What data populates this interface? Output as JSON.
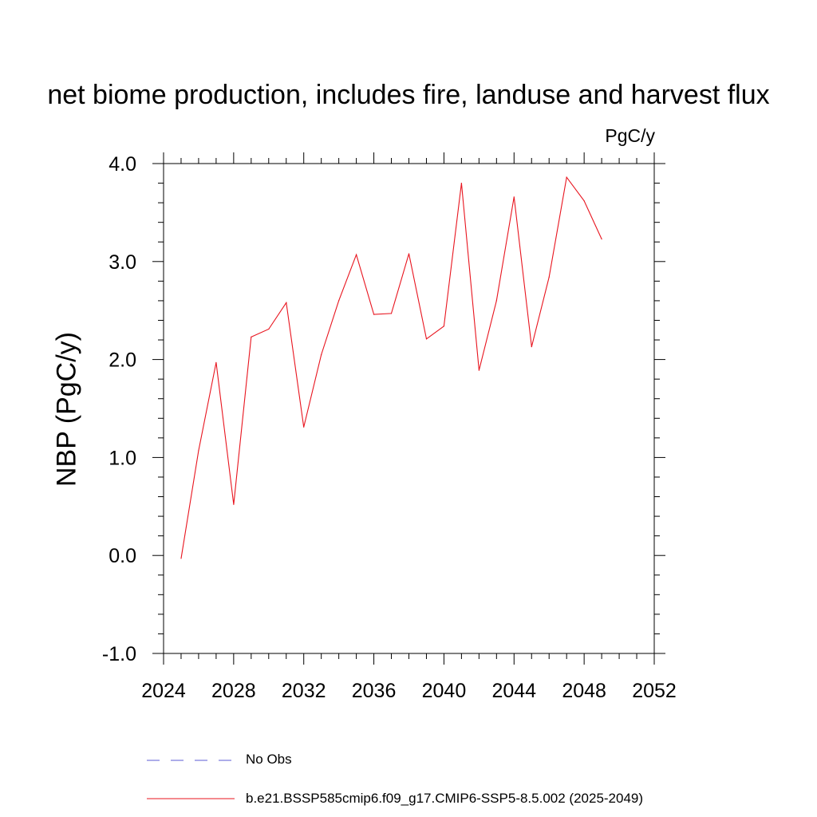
{
  "chart_data": {
    "type": "line",
    "title": "net biome production, includes fire, landuse and harvest flux",
    "units_label": "PgC/y",
    "xlabel": "",
    "ylabel": "NBP  (PgC/y)",
    "xlim": [
      2024,
      2052
    ],
    "ylim": [
      -1.0,
      4.0
    ],
    "x_ticks": [
      2024,
      2028,
      2032,
      2036,
      2040,
      2044,
      2048,
      2052
    ],
    "x_tick_labels": [
      "2024",
      "2028",
      "2032",
      "2036",
      "2040",
      "2044",
      "2048",
      "2052"
    ],
    "y_ticks": [
      -1.0,
      0.0,
      1.0,
      2.0,
      3.0,
      4.0
    ],
    "y_tick_labels": [
      "-1.0",
      "0.0",
      "1.0",
      "2.0",
      "3.0",
      "4.0"
    ],
    "grid": false,
    "legend_position": "bottom",
    "series": [
      {
        "name": "No Obs",
        "color": "#5b5bd6",
        "style": "dashed",
        "x": [],
        "values": []
      },
      {
        "name": "b.e21.BSSP585cmip6.f09_g17.CMIP6-SSP5-8.5.002 (2025-2049)",
        "color": "#e8141e",
        "style": "solid",
        "x": [
          2025,
          2026,
          2027,
          2028,
          2029,
          2030,
          2031,
          2032,
          2033,
          2034,
          2035,
          2036,
          2037,
          2038,
          2039,
          2040,
          2041,
          2042,
          2043,
          2044,
          2045,
          2046,
          2047,
          2048,
          2049
        ],
        "values": [
          -0.03,
          1.07,
          1.97,
          0.52,
          2.23,
          2.31,
          2.58,
          1.31,
          2.05,
          2.6,
          3.07,
          2.46,
          2.47,
          3.08,
          2.21,
          2.34,
          3.8,
          1.89,
          2.6,
          3.66,
          2.13,
          2.84,
          3.86,
          3.62,
          3.23
        ]
      }
    ]
  }
}
